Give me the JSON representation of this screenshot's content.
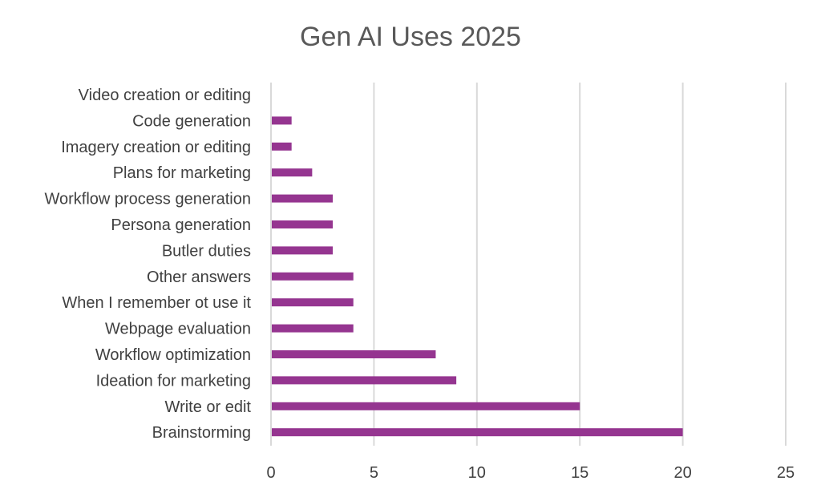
{
  "chart_data": {
    "type": "bar",
    "orientation": "horizontal",
    "title": "Gen AI Uses 2025",
    "xlabel": "",
    "ylabel": "",
    "categories": [
      "Video creation or editing",
      "Code generation",
      "Imagery creation or editing",
      "Plans for marketing",
      "Workflow process generation",
      "Persona generation",
      "Butler duties",
      "Other answers",
      "When I remember ot use it",
      "Webpage evaluation",
      "Workflow optimization",
      "Ideation for marketing",
      "Write or edit",
      "Brainstorming"
    ],
    "values": [
      0,
      1,
      1,
      2,
      3,
      3,
      3,
      4,
      4,
      4,
      8,
      9,
      15,
      20
    ],
    "xlim": [
      0,
      25
    ],
    "xticks": [
      "0",
      "5",
      "10",
      "15",
      "20",
      "25"
    ],
    "grid": "vertical",
    "legend": "none",
    "bar_color": "#953590",
    "grid_color": "#d9d9d9"
  }
}
